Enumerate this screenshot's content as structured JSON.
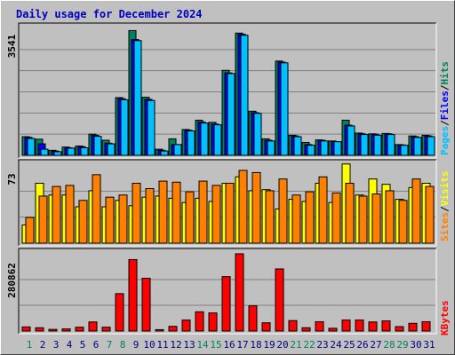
{
  "title": "Daily usage for December 2024",
  "colors": {
    "background": "#c0c0c0",
    "title": "#0000c0",
    "hits": "#00805c",
    "files": "#0000ff",
    "pages": "#00c0ff",
    "visits": "#ffff00",
    "sites": "#ff8000",
    "kbytes": "#ff0000",
    "weekend_day": "#00805c",
    "weekday_day": "#000080",
    "gridline": "#808080"
  },
  "chart_data": [
    {
      "type": "bar",
      "panel": "hits-files-pages",
      "ymax_label": "3541",
      "ylim": [
        0,
        3541
      ],
      "legend": [
        "Pages",
        "/",
        "Files",
        "/",
        "Hits"
      ],
      "categories": [
        "1",
        "2",
        "3",
        "4",
        "5",
        "6",
        "7",
        "8",
        "9",
        "10",
        "11",
        "12",
        "13",
        "14",
        "15",
        "16",
        "17",
        "18",
        "19",
        "20",
        "21",
        "22",
        "23",
        "24",
        "25",
        "26",
        "27",
        "28",
        "29",
        "30",
        "31"
      ],
      "series": [
        {
          "name": "Hits",
          "values": [
            520,
            450,
            140,
            230,
            260,
            590,
            420,
            1610,
            3480,
            1620,
            170,
            460,
            720,
            980,
            920,
            2370,
            3410,
            1230,
            460,
            2630,
            560,
            360,
            430,
            400,
            980,
            620,
            600,
            610,
            300,
            540,
            560
          ]
        },
        {
          "name": "Files",
          "values": [
            500,
            320,
            120,
            210,
            240,
            560,
            340,
            1580,
            3230,
            1560,
            140,
            300,
            700,
            930,
            870,
            2300,
            3380,
            1190,
            420,
            2600,
            540,
            300,
            420,
            380,
            840,
            600,
            590,
            600,
            290,
            520,
            540
          ]
        },
        {
          "name": "Pages",
          "values": [
            470,
            170,
            100,
            200,
            210,
            530,
            320,
            1550,
            3200,
            1530,
            120,
            300,
            680,
            900,
            850,
            2280,
            3350,
            1170,
            400,
            2580,
            520,
            280,
            400,
            380,
            820,
            580,
            560,
            580,
            280,
            500,
            520
          ]
        }
      ]
    },
    {
      "type": "bar",
      "panel": "visits-sites",
      "ymax_label": "73",
      "ylim": [
        0,
        73
      ],
      "legend": [
        "Sites",
        "/",
        "Visits"
      ],
      "categories": [
        "1",
        "2",
        "3",
        "4",
        "5",
        "6",
        "7",
        "8",
        "9",
        "10",
        "11",
        "12",
        "13",
        "14",
        "15",
        "16",
        "17",
        "18",
        "19",
        "20",
        "21",
        "22",
        "23",
        "24",
        "25",
        "26",
        "27",
        "28",
        "29",
        "30",
        "31"
      ],
      "series": [
        {
          "name": "Visits",
          "values": [
            17,
            56,
            45,
            45,
            34,
            49,
            34,
            40,
            35,
            43,
            44,
            42,
            38,
            42,
            39,
            56,
            62,
            49,
            50,
            32,
            41,
            39,
            56,
            38,
            74,
            45,
            60,
            55,
            41,
            52,
            56
          ]
        },
        {
          "name": "Sites",
          "values": [
            24,
            44,
            53,
            54,
            40,
            64,
            43,
            45,
            56,
            51,
            58,
            57,
            48,
            58,
            54,
            56,
            68,
            66,
            49,
            60,
            45,
            48,
            62,
            47,
            56,
            44,
            46,
            49,
            40,
            60,
            53
          ]
        }
      ]
    },
    {
      "type": "bar",
      "panel": "kbytes",
      "ymax_label": "280862",
      "ylim": [
        0,
        280862
      ],
      "legend": [
        "KBytes"
      ],
      "categories": [
        "1",
        "2",
        "3",
        "4",
        "5",
        "6",
        "7",
        "8",
        "9",
        "10",
        "11",
        "12",
        "13",
        "14",
        "15",
        "16",
        "17",
        "18",
        "19",
        "20",
        "21",
        "22",
        "23",
        "24",
        "25",
        "26",
        "27",
        "28",
        "29",
        "30",
        "31"
      ],
      "series": [
        {
          "name": "KBytes",
          "values": [
            15000,
            12000,
            6000,
            8000,
            14000,
            33000,
            14000,
            136000,
            260000,
            192000,
            5000,
            17000,
            40000,
            70000,
            66000,
            198000,
            281000,
            92000,
            30000,
            226000,
            38000,
            12000,
            34000,
            10000,
            40000,
            40000,
            33000,
            37000,
            16000,
            28000,
            34000
          ]
        }
      ]
    }
  ]
}
